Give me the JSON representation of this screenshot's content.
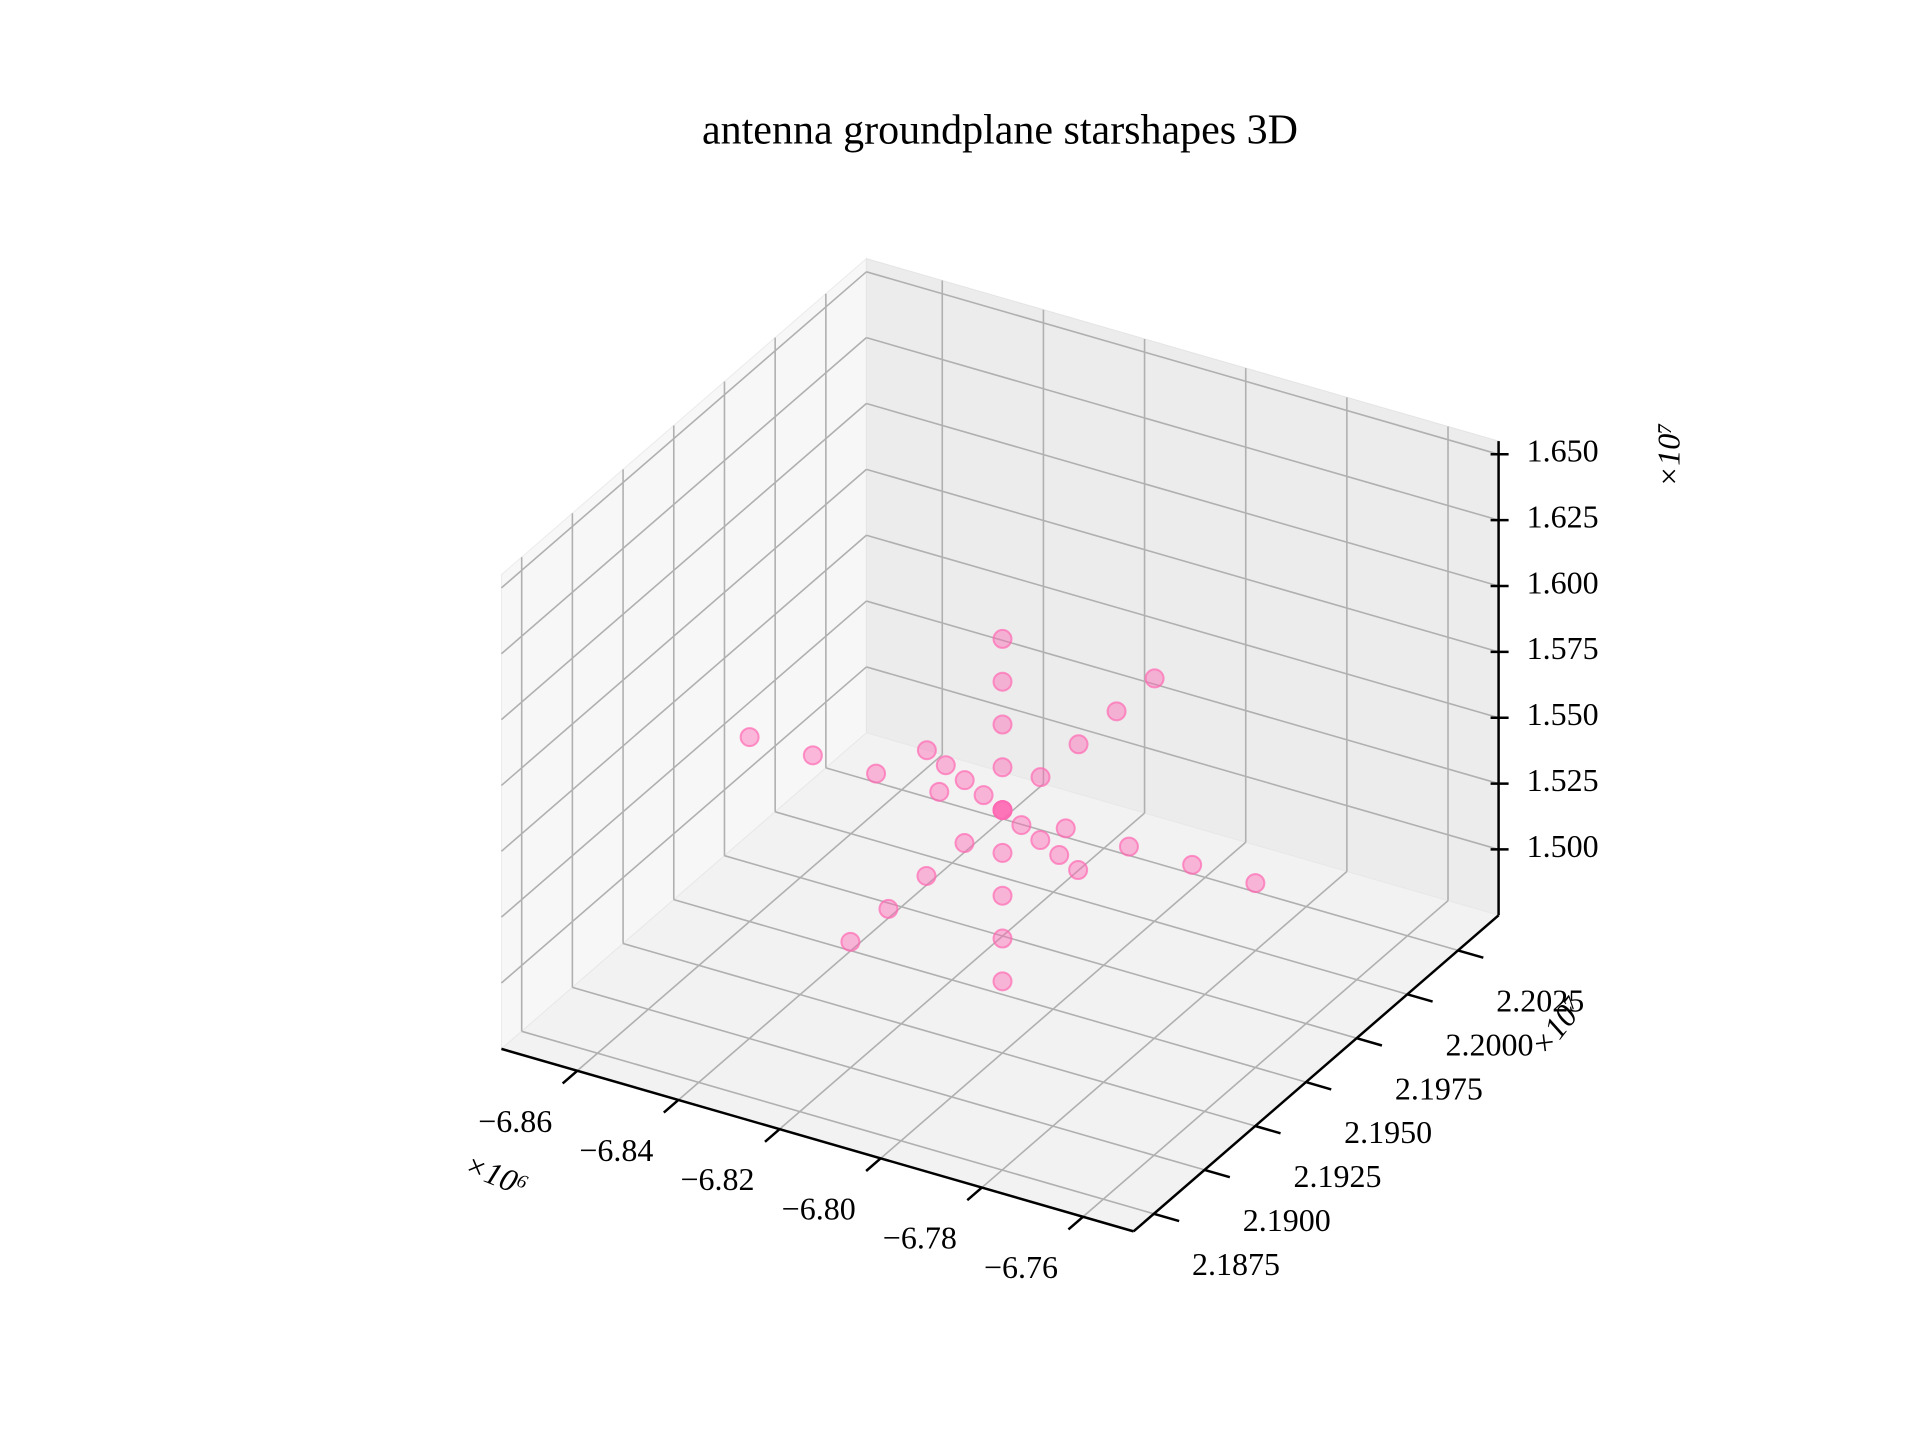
{
  "chart_data": {
    "type": "scatter3d",
    "title": "antenna groundplane starshapes 3D",
    "color": "#ff69b4",
    "x": [
      -6810000,
      -6810000,
      -6810000,
      -6810000,
      -6810000,
      -6810000,
      -6810000,
      -6810000,
      -6810000,
      -6860000,
      -6847500,
      -6835000,
      -6822500,
      -6810000,
      -6797500,
      -6785000,
      -6772500,
      -6760000,
      -6810000,
      -6810000,
      -6810000,
      -6810000,
      -6810000,
      -6810000,
      -6810000,
      -6810000,
      -6810000,
      -6845000,
      -6836250,
      -6827500,
      -6818750,
      -6810000,
      -6801250,
      -6792500,
      -6783750,
      -6775000
    ],
    "y": [
      21950000,
      21950000,
      21950000,
      21950000,
      21950000,
      21950000,
      21950000,
      21950000,
      21950000,
      21950000,
      21950000,
      21950000,
      21950000,
      21950000,
      21950000,
      21950000,
      21950000,
      21950000,
      21875000,
      21893750,
      21912500,
      21931250,
      21950000,
      21968750,
      21987500,
      22006250,
      22025000,
      22000000,
      21987500,
      21975000,
      21962500,
      21950000,
      21937500,
      21925000,
      21912500,
      21900000
    ],
    "z": [
      14800000,
      14962500,
      15125000,
      15287500,
      15450000,
      15612500,
      15775000,
      15937500,
      16100000,
      15450000,
      15450000,
      15450000,
      15450000,
      15450000,
      15450000,
      15450000,
      15450000,
      15450000,
      15450000,
      15450000,
      15450000,
      15450000,
      15450000,
      15450000,
      15450000,
      15450000,
      15450000,
      15150000,
      15225000,
      15300000,
      15375000,
      15450000,
      15525000,
      15600000,
      15675000,
      15750000
    ],
    "xlim": [
      -6875000,
      -6750000
    ],
    "ylim": [
      21865000,
      22045000
    ],
    "zlim": [
      14750000,
      16550000
    ],
    "xticks": [
      {
        "value": -6860000,
        "label": "−6.86"
      },
      {
        "value": -6840000,
        "label": "−6.84"
      },
      {
        "value": -6820000,
        "label": "−6.82"
      },
      {
        "value": -6800000,
        "label": "−6.80"
      },
      {
        "value": -6780000,
        "label": "−6.78"
      },
      {
        "value": -6760000,
        "label": "−6.76"
      }
    ],
    "yticks": [
      {
        "value": 21875000,
        "label": "2.1875"
      },
      {
        "value": 21900000,
        "label": "2.1900"
      },
      {
        "value": 21925000,
        "label": "2.1925"
      },
      {
        "value": 21950000,
        "label": "2.1950"
      },
      {
        "value": 21975000,
        "label": "2.1975"
      },
      {
        "value": 22000000,
        "label": "2.2000"
      },
      {
        "value": 22025000,
        "label": "2.2025"
      }
    ],
    "zticks": [
      {
        "value": 15000000,
        "label": "1.500"
      },
      {
        "value": 15250000,
        "label": "1.525"
      },
      {
        "value": 15500000,
        "label": "1.550"
      },
      {
        "value": 15750000,
        "label": "1.575"
      },
      {
        "value": 16000000,
        "label": "1.600"
      },
      {
        "value": 16250000,
        "label": "1.625"
      },
      {
        "value": 16500000,
        "label": "1.650"
      }
    ],
    "x_offset": "×10⁶",
    "y_offset": "×10⁷",
    "z_offset": "×10⁷",
    "grid": true
  }
}
